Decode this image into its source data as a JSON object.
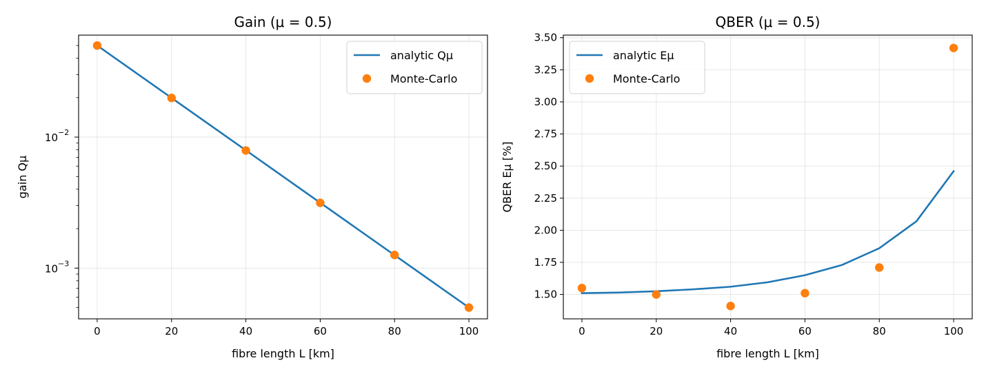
{
  "chart_data": [
    {
      "type": "line",
      "title": "Gain (μ = 0.5)",
      "xlabel": "fibre length L [km]",
      "ylabel": "gain Qμ",
      "xlim": [
        -5,
        105
      ],
      "ylim": [
        0.00041,
        0.06
      ],
      "yscale": "log",
      "grid": true,
      "legend": "top-right",
      "x_ticks": [
        0,
        20,
        40,
        60,
        80,
        100
      ],
      "y_ticks": [
        {
          "value": 0.01,
          "label": "10",
          "exp": "−2"
        },
        {
          "value": 0.001,
          "label": "10",
          "exp": "−3"
        }
      ],
      "series": [
        {
          "name": "analytic Qμ",
          "kind": "line",
          "color": "#1f77b4",
          "x": [
            0,
            100
          ],
          "y": [
            0.05,
            0.0005
          ]
        },
        {
          "name": "Monte-Carlo",
          "kind": "scatter",
          "color": "#ff7f0e",
          "x": [
            0,
            20,
            40,
            60,
            80,
            100
          ],
          "y": [
            0.05,
            0.0199,
            0.0079,
            0.00315,
            0.00126,
            0.0005
          ]
        }
      ]
    },
    {
      "type": "line",
      "title": "QBER (μ = 0.5)",
      "xlabel": "fibre length L [km]",
      "ylabel": "QBER Eμ [%]",
      "xlim": [
        -5,
        105
      ],
      "ylim": [
        1.31,
        3.52
      ],
      "yscale": "linear",
      "grid": true,
      "legend": "top-left",
      "x_ticks": [
        0,
        20,
        40,
        60,
        80,
        100
      ],
      "y_ticks": [
        1.5,
        1.75,
        2.0,
        2.25,
        2.5,
        2.75,
        3.0,
        3.25,
        3.5
      ],
      "series": [
        {
          "name": "analytic Eμ",
          "kind": "line",
          "color": "#1f77b4",
          "x": [
            0,
            10,
            20,
            30,
            40,
            50,
            60,
            70,
            80,
            90,
            100
          ],
          "y": [
            1.51,
            1.515,
            1.525,
            1.54,
            1.56,
            1.595,
            1.65,
            1.73,
            1.86,
            2.07,
            2.46
          ]
        },
        {
          "name": "Monte-Carlo",
          "kind": "scatter",
          "color": "#ff7f0e",
          "x": [
            0,
            20,
            40,
            60,
            80,
            100
          ],
          "y": [
            1.55,
            1.5,
            1.41,
            1.51,
            1.71,
            3.42
          ]
        }
      ]
    }
  ]
}
